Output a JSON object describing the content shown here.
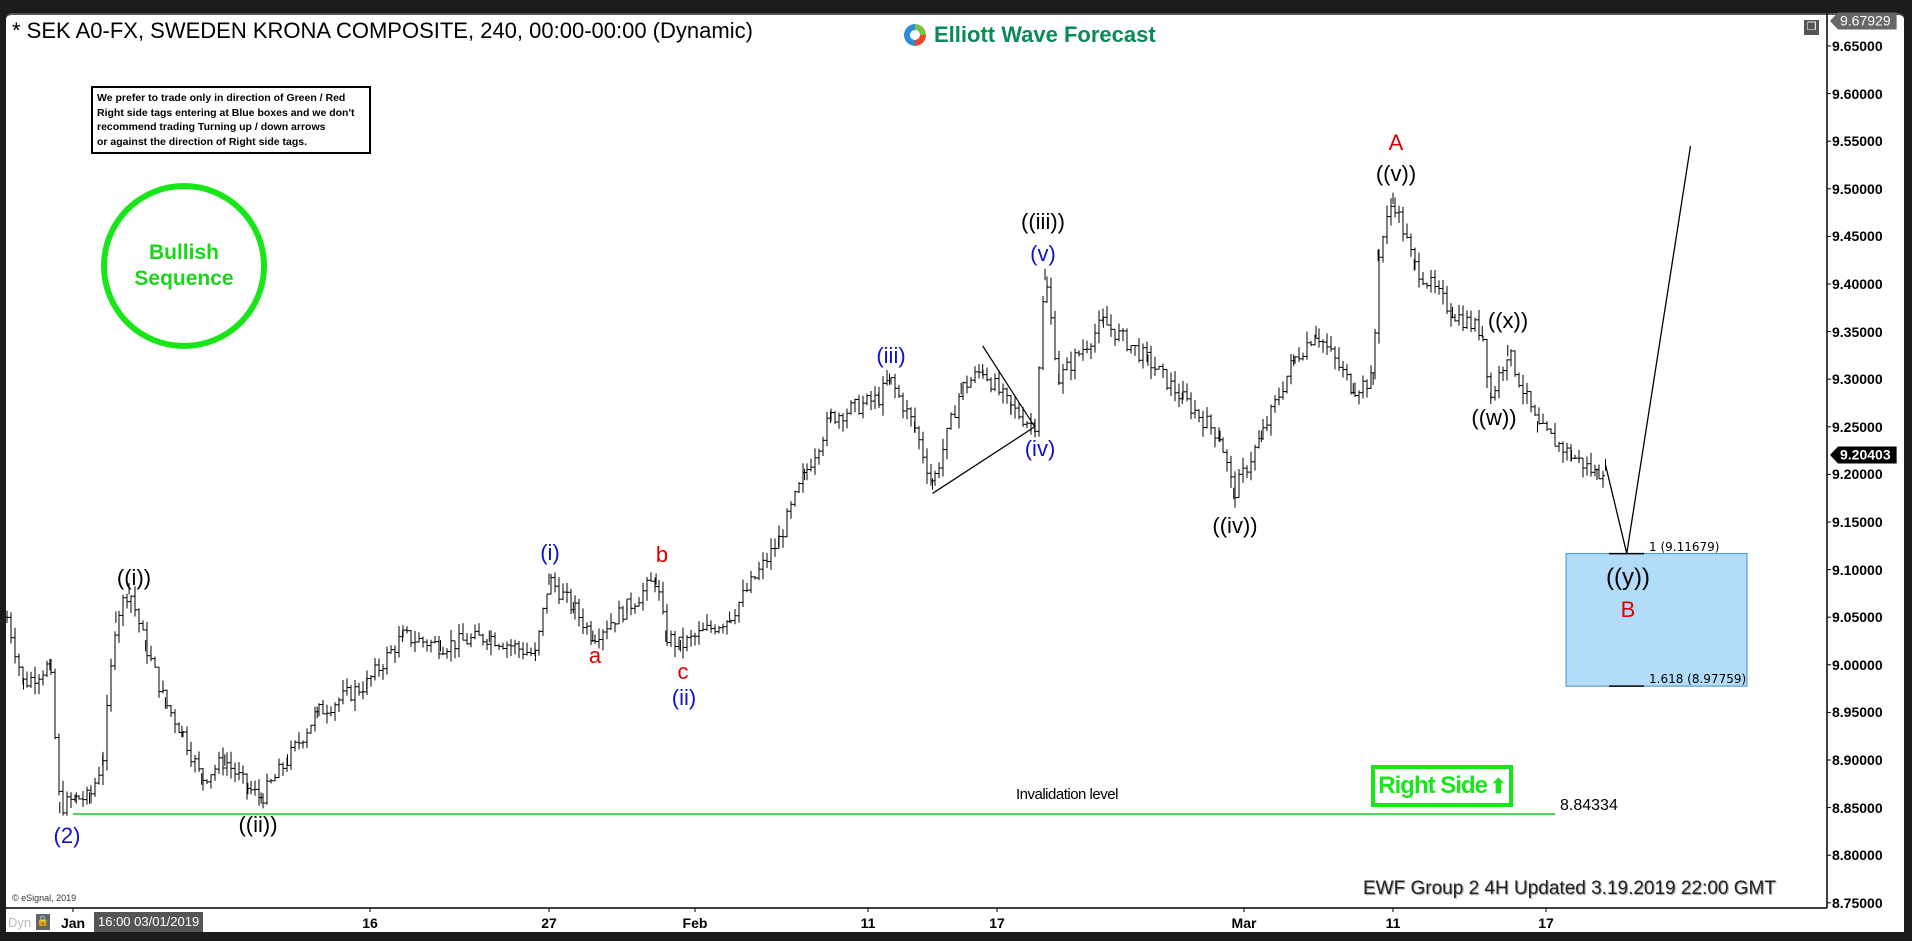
{
  "title": "* SEK A0-FX, SWEDEN KRONA COMPOSITE, 240, 00:00-00:00 (Dynamic)",
  "logo": "Elliott Wave Forecast",
  "disclaimer": [
    "We prefer to trade only in direction of Green / Red",
    "Right side tags entering at Blue boxes and we don't",
    "recommend trading Turning up / down arrows",
    "or against the direction of Right side tags."
  ],
  "sequence_badge": {
    "line1": "Bullish",
    "line2": "Sequence",
    "color": "#19e619"
  },
  "right_side_tag": {
    "label": "Right Side",
    "icon": "arrow-up-icon",
    "color": "#19e619"
  },
  "invalidation": {
    "label": "Invalidation level",
    "value": "8.84334",
    "price": 8.84334,
    "color": "#19c819"
  },
  "footer": "EWF Group 2 4H Updated 3.19.2019 22:00 GMT",
  "copyright": "© eSignal, 2019",
  "cursor": {
    "mode": "Dyn",
    "time": "16:00 03/01/2019"
  },
  "chart_data": {
    "type": "line",
    "subtype": "ohlc-bars",
    "ylim": [
      8.73,
      9.685
    ],
    "y_ticks": [
      "9.65000",
      "9.60000",
      "9.55000",
      "9.50000",
      "9.45000",
      "9.40000",
      "9.35000",
      "9.30000",
      "9.25000",
      "9.20000",
      "9.15000",
      "9.10000",
      "9.05000",
      "9.00000",
      "8.95000",
      "8.90000",
      "8.85000",
      "8.80000",
      "8.75000"
    ],
    "x_ticks": [
      {
        "label": "Jan",
        "date": "2019-01-01 00:00"
      },
      {
        "label": "16",
        "date": "2019-01-16 00:00"
      },
      {
        "label": "27",
        "date": "2019-01-27 00:00"
      },
      {
        "label": "Feb",
        "date": "2019-02-01 00:00"
      },
      {
        "label": "11",
        "date": "2019-02-11 00:00"
      },
      {
        "label": "17",
        "date": "2019-02-17 00:00"
      },
      {
        "label": "Mar",
        "date": "2019-03-01 00:00"
      },
      {
        "label": "11",
        "date": "2019-03-11 00:00"
      },
      {
        "label": "17",
        "date": "2019-03-17 00:00"
      }
    ],
    "last_price": "9.20403",
    "top_price": "9.67929",
    "price_path": [
      [
        "2018-12-28 16:00",
        9.05
      ],
      [
        "2018-12-29 12:00",
        8.98
      ],
      [
        "2018-12-30 20:00",
        9.0
      ],
      [
        "2018-12-31 08:00",
        8.85
      ],
      [
        "2019-01-01 04:00",
        8.86
      ],
      [
        "2019-01-01 20:00",
        8.86
      ],
      [
        "2019-01-02 12:00",
        8.9
      ],
      [
        "2019-01-03 04:00",
        9.05
      ],
      [
        "2019-01-03 20:00",
        9.08
      ],
      [
        "2019-01-04 16:00",
        9.02
      ],
      [
        "2019-01-05 16:00",
        8.96
      ],
      [
        "2019-01-06 12:00",
        8.93
      ],
      [
        "2019-01-07 12:00",
        8.88
      ],
      [
        "2019-01-08 16:00",
        8.9
      ],
      [
        "2019-01-09 20:00",
        8.87
      ],
      [
        "2019-01-10 12:00",
        8.86
      ],
      [
        "2019-01-11 20:00",
        8.9
      ],
      [
        "2019-01-13 08:00",
        8.95
      ],
      [
        "2019-01-15 20:00",
        8.98
      ],
      [
        "2019-01-18 00:00",
        9.03
      ],
      [
        "2019-01-20 08:00",
        9.02
      ],
      [
        "2019-01-23 08:00",
        9.03
      ],
      [
        "2019-01-26 04:00",
        9.01
      ],
      [
        "2019-01-27 00:00",
        9.09
      ],
      [
        "2019-01-27 20:00",
        9.06
      ],
      [
        "2019-01-28 12:00",
        9.03
      ],
      [
        "2019-01-29 16:00",
        9.06
      ],
      [
        "2019-01-30 16:00",
        9.09
      ],
      [
        "2019-01-31 00:00",
        9.03
      ],
      [
        "2019-01-31 12:00",
        9.02
      ],
      [
        "2019-02-03 00:00",
        9.05
      ],
      [
        "2019-02-05 20:00",
        9.13
      ],
      [
        "2019-02-07 08:00",
        9.2
      ],
      [
        "2019-02-08 20:00",
        9.26
      ],
      [
        "2019-02-11 12:00",
        9.28
      ],
      [
        "2019-02-12 00:00",
        9.3
      ],
      [
        "2019-02-13 04:00",
        9.25
      ],
      [
        "2019-02-14 00:00",
        9.19
      ],
      [
        "2019-02-15 08:00",
        9.29
      ],
      [
        "2019-02-16 08:00",
        9.31
      ],
      [
        "2019-02-17 16:00",
        9.27
      ],
      [
        "2019-02-18 20:00",
        9.25
      ],
      [
        "2019-02-19 08:00",
        9.41
      ],
      [
        "2019-02-20 00:00",
        9.3
      ],
      [
        "2019-02-22 04:00",
        9.36
      ],
      [
        "2019-02-24 08:00",
        9.32
      ],
      [
        "2019-02-26 00:00",
        9.28
      ],
      [
        "2019-02-27 20:00",
        9.24
      ],
      [
        "2019-02-28 12:00",
        9.18
      ],
      [
        "2019-03-02 04:00",
        9.24
      ],
      [
        "2019-03-04 08:00",
        9.32
      ],
      [
        "2019-03-05 20:00",
        9.35
      ],
      [
        "2019-03-08 08:00",
        9.29
      ],
      [
        "2019-03-09 16:00",
        9.3
      ],
      [
        "2019-03-10 00:00",
        9.43
      ],
      [
        "2019-03-11 00:00",
        9.49
      ],
      [
        "2019-03-11 20:00",
        9.42
      ],
      [
        "2019-03-13 08:00",
        9.37
      ],
      [
        "2019-03-14 12:00",
        9.35
      ],
      [
        "2019-03-14 20:00",
        9.28
      ],
      [
        "2019-03-15 12:00",
        9.33
      ],
      [
        "2019-03-16 16:00",
        9.25
      ],
      [
        "2019-03-18 00:00",
        9.22
      ],
      [
        "2019-03-19 00:00",
        9.2
      ],
      [
        "2019-03-19 08:00",
        9.21
      ]
    ],
    "projection_path": [
      [
        "2019-03-19 08:00",
        9.21
      ],
      [
        "2019-03-20 04:00",
        9.117
      ],
      [
        "2019-03-22 16:00",
        9.545
      ]
    ],
    "triangle": [
      [
        "2019-02-14 00:00",
        9.18
      ],
      [
        "2019-02-16 08:00",
        9.335
      ],
      [
        "2019-02-18 20:00",
        9.25
      ]
    ],
    "target_box": {
      "top_label": "1 (9.11679)",
      "bottom_label": "1.618 (8.97759)",
      "top": 9.11679,
      "bottom": 8.97759,
      "color": "#b3dcfb"
    },
    "wave_labels": [
      {
        "text": "(2)",
        "color": "blue"
      },
      {
        "text": "((i))",
        "color": "black"
      },
      {
        "text": "((ii))",
        "color": "black"
      },
      {
        "text": "(i)",
        "color": "blue"
      },
      {
        "text": "a",
        "color": "red"
      },
      {
        "text": "b",
        "color": "red"
      },
      {
        "text": "c",
        "color": "red"
      },
      {
        "text": "(ii)",
        "color": "blue"
      },
      {
        "text": "(iii)",
        "color": "blue"
      },
      {
        "text": "((iii))",
        "color": "black"
      },
      {
        "text": "(v)",
        "color": "blue"
      },
      {
        "text": "(iv)",
        "color": "blue"
      },
      {
        "text": "((iv))",
        "color": "black"
      },
      {
        "text": "A",
        "color": "red"
      },
      {
        "text": "((v))",
        "color": "black"
      },
      {
        "text": "((x))",
        "color": "black"
      },
      {
        "text": "((w))",
        "color": "black"
      },
      {
        "text": "((y))",
        "color": "black"
      },
      {
        "text": "B",
        "color": "red"
      }
    ]
  }
}
